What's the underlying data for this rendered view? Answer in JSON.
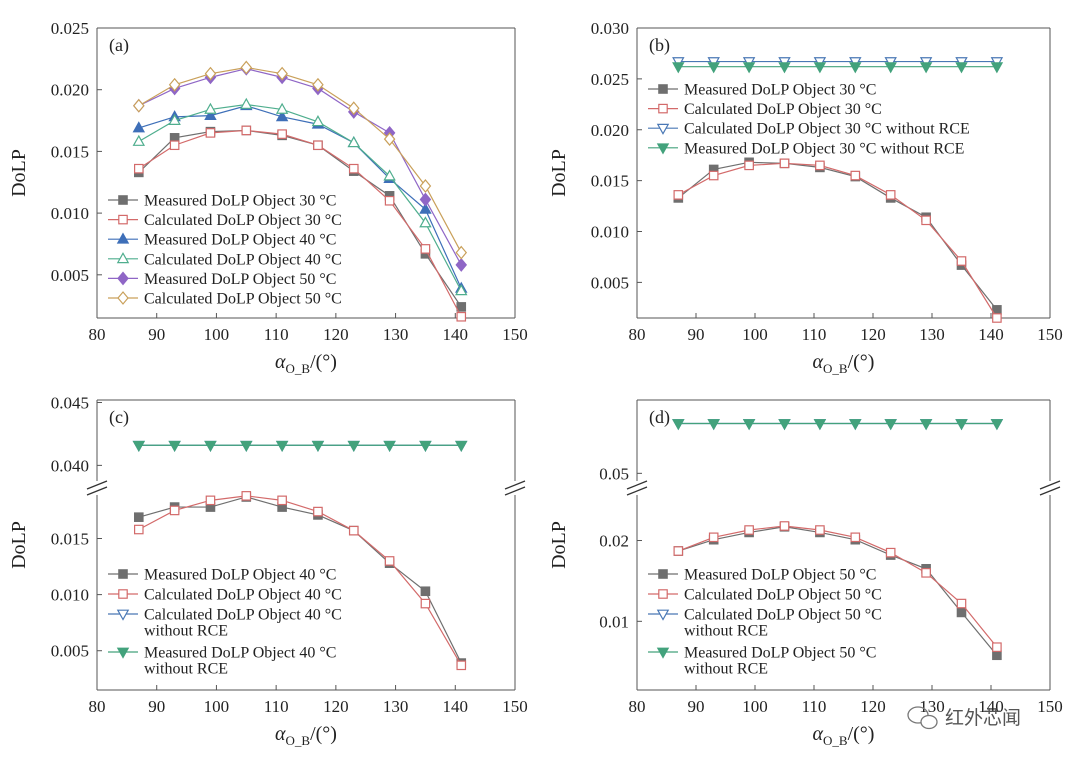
{
  "colors": {
    "measured30": "#6f6f6f",
    "calc30": "#d36a6a",
    "measured40": "#3e6fb8",
    "calc40": "#4fae8e",
    "measured50": "#8f66c6",
    "calc50": "#c9a05a",
    "calcNoRce": "#4a78b5",
    "measNoRce": "#43a27c"
  },
  "watermark": "红外芯闻",
  "chart_data": [
    {
      "id": "a",
      "type": "line",
      "panel_label": "(a)",
      "ylabel": "DoLP",
      "xlabel": "α",
      "xlabel_sub": "O_B",
      "xlabel_unit": "/(°)",
      "xlim": [
        80,
        150
      ],
      "ylim": [
        0.0015,
        0.025
      ],
      "xticks": [
        80,
        90,
        100,
        110,
        120,
        130,
        140,
        150
      ],
      "yticks": [
        0.005,
        0.01,
        0.015,
        0.02,
        0.025
      ],
      "ytick_labels": [
        "0.005",
        "0.010",
        "0.015",
        "0.020",
        "0.025"
      ],
      "x": [
        87,
        93,
        99,
        105,
        111,
        117,
        123,
        129,
        135,
        141
      ],
      "series": [
        {
          "name": "Measured DoLP Object 30 °C",
          "marker": "square-filled",
          "colorKey": "measured30",
          "values": [
            0.0133,
            0.0161,
            0.0166,
            0.0167,
            0.0163,
            0.0155,
            0.0134,
            0.0114,
            0.0067,
            0.0024
          ]
        },
        {
          "name": "Calculated DoLP Object 30 °C",
          "marker": "square-open",
          "colorKey": "calc30",
          "values": [
            0.0136,
            0.0155,
            0.0165,
            0.0167,
            0.0164,
            0.0155,
            0.0136,
            0.011,
            0.0071,
            0.0016
          ]
        },
        {
          "name": "Measured DoLP Object 40 °C",
          "marker": "triangle-up-filled",
          "colorKey": "measured40",
          "values": [
            0.0169,
            0.0178,
            0.0179,
            0.0187,
            0.0178,
            0.0172,
            0.0157,
            0.0128,
            0.0103,
            0.0039
          ]
        },
        {
          "name": "Calculated DoLP Object 40 °C",
          "marker": "triangle-up-open",
          "colorKey": "calc40",
          "values": [
            0.0158,
            0.0175,
            0.0184,
            0.0188,
            0.0184,
            0.0174,
            0.0157,
            0.013,
            0.0092,
            0.0037
          ]
        },
        {
          "name": "Measured DoLP Object 50 °C",
          "marker": "diamond-filled",
          "colorKey": "measured50",
          "values": [
            0.0187,
            0.0201,
            0.021,
            0.0217,
            0.021,
            0.0201,
            0.0182,
            0.0165,
            0.0111,
            0.0058
          ]
        },
        {
          "name": "Calculated DoLP Object 50 °C",
          "marker": "diamond-open",
          "colorKey": "calc50",
          "values": [
            0.0187,
            0.0204,
            0.0213,
            0.0218,
            0.0213,
            0.0204,
            0.0185,
            0.016,
            0.0122,
            0.0068
          ]
        }
      ],
      "legend_position": "bottom-left"
    },
    {
      "id": "b",
      "type": "line",
      "panel_label": "(b)",
      "ylabel": "DoLP",
      "xlabel": "α",
      "xlabel_sub": "O_B",
      "xlabel_unit": "/(°)",
      "xlim": [
        80,
        150
      ],
      "ylim": [
        0.0015,
        0.03
      ],
      "xticks": [
        80,
        90,
        100,
        110,
        120,
        130,
        140,
        150
      ],
      "yticks": [
        0.005,
        0.01,
        0.015,
        0.02,
        0.025,
        0.03
      ],
      "ytick_labels": [
        "0.005",
        "0.010",
        "0.015",
        "0.020",
        "0.025",
        "0.030"
      ],
      "x": [
        87,
        93,
        99,
        105,
        111,
        117,
        123,
        129,
        135,
        141
      ],
      "series": [
        {
          "name": "Measured DoLP Object 30 °C",
          "marker": "square-filled",
          "colorKey": "measured30",
          "values": [
            0.0133,
            0.0161,
            0.0168,
            0.0167,
            0.0163,
            0.0154,
            0.0133,
            0.0114,
            0.0067,
            0.0023
          ]
        },
        {
          "name": "Calculated DoLP Object 30 °C",
          "marker": "square-open",
          "colorKey": "calc30",
          "values": [
            0.0136,
            0.0155,
            0.0165,
            0.0167,
            0.0165,
            0.0155,
            0.0136,
            0.0111,
            0.0071,
            0.0015
          ]
        },
        {
          "name": "Calculated DoLP Object 30 °C without RCE",
          "marker": "triangle-down-open",
          "colorKey": "calcNoRce",
          "values": [
            0.0267,
            0.0267,
            0.0267,
            0.0267,
            0.0267,
            0.0267,
            0.0267,
            0.0267,
            0.0267,
            0.0267
          ]
        },
        {
          "name": "Measured DoLP Object 30 °C without RCE",
          "marker": "triangle-down-filled",
          "colorKey": "measNoRce",
          "values": [
            0.0262,
            0.0262,
            0.0262,
            0.0262,
            0.0262,
            0.0262,
            0.0262,
            0.0262,
            0.0262,
            0.0262
          ]
        }
      ],
      "legend_position": "upper-left"
    },
    {
      "id": "c",
      "type": "line",
      "panel_label": "(c)",
      "ylabel": "DoLP",
      "xlabel": "α",
      "xlabel_sub": "O_B",
      "xlabel_unit": "/(°)",
      "xlim": [
        80,
        150
      ],
      "broken_axis": true,
      "upper_ylim": [
        0.0382,
        0.0452
      ],
      "lower_ylim": [
        0.0015,
        0.0195
      ],
      "upper_yticks": [
        0.04,
        0.045
      ],
      "upper_ytick_labels": [
        "0.040",
        "0.045"
      ],
      "lower_yticks": [
        0.005,
        0.01,
        0.015
      ],
      "lower_ytick_labels": [
        "0.005",
        "0.010",
        "0.015"
      ],
      "xticks": [
        80,
        90,
        100,
        110,
        120,
        130,
        140,
        150
      ],
      "x": [
        87,
        93,
        99,
        105,
        111,
        117,
        123,
        129,
        135,
        141
      ],
      "series": [
        {
          "name": "Measured DoLP Object 40 °C",
          "marker": "square-filled",
          "colorKey": "measured30",
          "values": [
            0.0169,
            0.0178,
            0.0178,
            0.0187,
            0.0178,
            0.0171,
            0.0157,
            0.0128,
            0.0103,
            0.0039
          ]
        },
        {
          "name": "Calculated DoLP Object 40 °C",
          "marker": "square-open",
          "colorKey": "calc30",
          "values": [
            0.0158,
            0.0175,
            0.0184,
            0.0188,
            0.0184,
            0.0174,
            0.0157,
            0.013,
            0.0092,
            0.0037
          ]
        },
        {
          "name": "Calculated DoLP Object 40 °C",
          "name2": "without RCE",
          "marker": "triangle-down-open",
          "colorKey": "calcNoRce",
          "values": [
            0.0416,
            0.0416,
            0.0416,
            0.0416,
            0.0416,
            0.0416,
            0.0416,
            0.0416,
            0.0416,
            0.0416
          ]
        },
        {
          "name": "Measured DoLP Object 40 °C",
          "name2": "without RCE",
          "marker": "triangle-down-filled",
          "colorKey": "measNoRce",
          "values": [
            0.0416,
            0.0416,
            0.0416,
            0.0416,
            0.0416,
            0.0416,
            0.0416,
            0.0416,
            0.0416,
            0.0416
          ]
        }
      ],
      "legend_position": "bottom-left"
    },
    {
      "id": "d",
      "type": "line",
      "panel_label": "(d)",
      "ylabel": "DoLP",
      "xlabel": "α",
      "xlabel_sub": "O_B",
      "xlabel_unit": "/(°)",
      "xlim": [
        80,
        150
      ],
      "broken_axis": true,
      "upper_ylim": [
        0.0475,
        0.0625
      ],
      "lower_ylim": [
        0.0015,
        0.0265
      ],
      "upper_yticks": [
        0.05
      ],
      "upper_ytick_labels": [
        "0.05"
      ],
      "lower_yticks": [
        0.01,
        0.02
      ],
      "lower_ytick_labels": [
        "0.01",
        "0.02"
      ],
      "xticks": [
        80,
        90,
        100,
        110,
        120,
        130,
        140,
        150
      ],
      "x": [
        87,
        93,
        99,
        105,
        111,
        117,
        123,
        129,
        135,
        141
      ],
      "series": [
        {
          "name": "Measured DoLP Object 50 °C",
          "marker": "square-filled",
          "colorKey": "measured30",
          "values": [
            0.0187,
            0.0201,
            0.021,
            0.0217,
            0.021,
            0.0201,
            0.0182,
            0.0165,
            0.0111,
            0.0058
          ]
        },
        {
          "name": "Calculated DoLP Object 50 °C",
          "marker": "square-open",
          "colorKey": "calc30",
          "values": [
            0.0187,
            0.0204,
            0.0213,
            0.0218,
            0.0213,
            0.0204,
            0.0185,
            0.016,
            0.0122,
            0.0068
          ]
        },
        {
          "name": "Calculated DoLP Object 50 °C",
          "name2": "without RCE",
          "marker": "triangle-down-open",
          "colorKey": "calcNoRce",
          "values": [
            0.0585,
            0.0585,
            0.0585,
            0.0585,
            0.0585,
            0.0585,
            0.0585,
            0.0585,
            0.0585,
            0.0585
          ]
        },
        {
          "name": "Measured DoLP Object 50 °C",
          "name2": "without RCE",
          "marker": "triangle-down-filled",
          "colorKey": "measNoRce",
          "values": [
            0.0585,
            0.0585,
            0.0585,
            0.0585,
            0.0585,
            0.0585,
            0.0585,
            0.0585,
            0.0585,
            0.0585
          ]
        }
      ],
      "legend_position": "bottom-left"
    }
  ]
}
